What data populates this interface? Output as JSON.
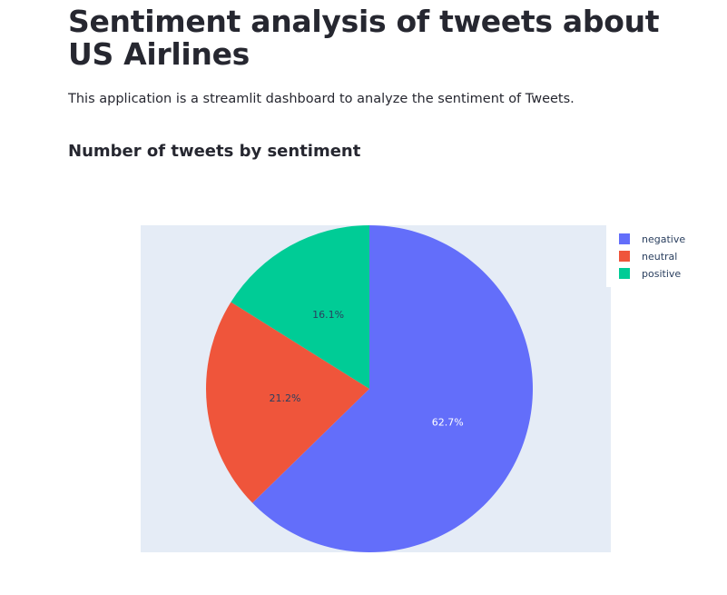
{
  "header": {
    "title": "Sentiment analysis of tweets about US Airlines",
    "description": "This application is a streamlit dashboard to analyze the sentiment of Tweets."
  },
  "section": {
    "title": "Number of tweets by sentiment"
  },
  "colors": {
    "negative": "#636efa",
    "neutral": "#ef553b",
    "positive": "#00cc96",
    "plot_background": "#e5ecf6",
    "text": "#262730"
  },
  "chart_data": {
    "type": "pie",
    "title": "",
    "labels": [
      "negative",
      "neutral",
      "positive"
    ],
    "values": [
      62.7,
      21.2,
      16.1
    ],
    "value_labels": [
      "62.7%",
      "21.2%",
      "16.1%"
    ],
    "colors": [
      "#636efa",
      "#ef553b",
      "#00cc96"
    ],
    "legend": {
      "position": "top-right",
      "entries": [
        "negative",
        "neutral",
        "positive"
      ]
    },
    "direction": "clockwise",
    "start": "top"
  }
}
